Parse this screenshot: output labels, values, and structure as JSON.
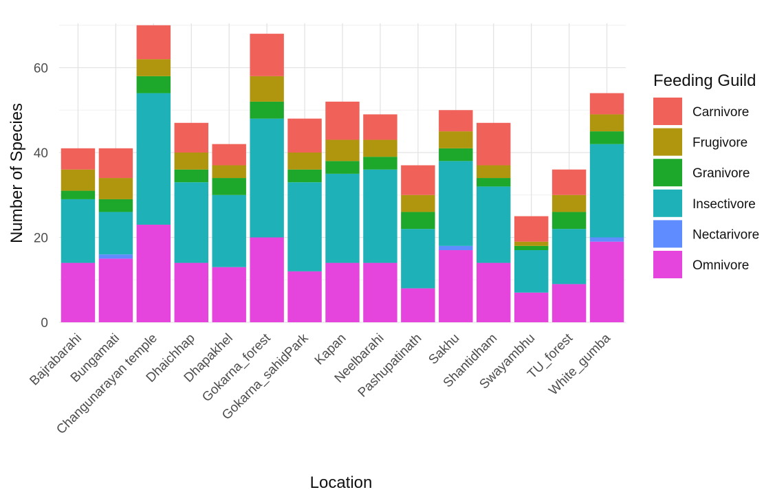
{
  "chart_data": {
    "type": "bar",
    "stacked": true,
    "xlabel": "Location",
    "ylabel": "Number of Species",
    "ylim": [
      0,
      70
    ],
    "yticks": [
      0,
      20,
      40,
      60
    ],
    "grid": true,
    "legend_position": "right",
    "legend_title": "Feeding Guild",
    "categories": [
      "Bajrabarahi",
      "Bungamati",
      "Changunarayan temple",
      "Dhaichhap",
      "Dhapakhel",
      "Gokarna_forest",
      "Gokarna_sahidPark",
      "Kapan",
      "Neelbarahi",
      "Pashupatinath",
      "Sakhu",
      "Shantidham",
      "Swayambhu",
      "TU_forest",
      "White_gumba"
    ],
    "series": [
      {
        "name": "Omnivore",
        "color": "#e545dc",
        "values": [
          14,
          15,
          23,
          14,
          13,
          20,
          12,
          14,
          14,
          8,
          17,
          14,
          7,
          9,
          19
        ]
      },
      {
        "name": "Nectarivore",
        "color": "#5f8cff",
        "values": [
          0,
          1,
          0,
          0,
          0,
          0,
          0,
          0,
          0,
          0,
          1,
          0,
          0,
          0,
          1
        ]
      },
      {
        "name": "Insectivore",
        "color": "#1eb2b8",
        "values": [
          15,
          10,
          31,
          19,
          17,
          28,
          21,
          21,
          22,
          14,
          20,
          18,
          10,
          13,
          22
        ]
      },
      {
        "name": "Granivore",
        "color": "#1ea82b",
        "values": [
          2,
          3,
          4,
          3,
          4,
          4,
          3,
          3,
          3,
          4,
          3,
          2,
          1,
          4,
          3
        ]
      },
      {
        "name": "Frugivore",
        "color": "#b0960e",
        "values": [
          5,
          5,
          4,
          4,
          3,
          6,
          4,
          5,
          4,
          4,
          4,
          3,
          1,
          4,
          4
        ]
      },
      {
        "name": "Carnivore",
        "color": "#f06159",
        "values": [
          5,
          7,
          8,
          7,
          5,
          10,
          8,
          9,
          6,
          7,
          5,
          10,
          6,
          6,
          5
        ]
      }
    ]
  }
}
